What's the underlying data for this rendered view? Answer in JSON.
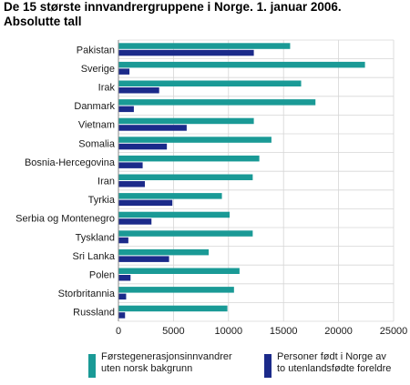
{
  "header": {
    "title_line1": "De 15 største innvandrergruppene i Norge. 1. januar 2006.",
    "title_line2": "Absolutte tall"
  },
  "chart_data": {
    "type": "bar",
    "orientation": "horizontal",
    "categories": [
      "Pakistan",
      "Sverige",
      "Irak",
      "Danmark",
      "Vietnam",
      "Somalia",
      "Bosnia-Hercegovina",
      "Iran",
      "Tyrkia",
      "Serbia og Montenegro",
      "Tyskland",
      "Sri Lanka",
      "Polen",
      "Storbritannia",
      "Russland"
    ],
    "series": [
      {
        "name": "Førstegenerasjonsinnvandrer uten norsk bakgrunn",
        "color": "#1a9a96",
        "values": [
          15600,
          22400,
          16600,
          17900,
          12300,
          13900,
          12800,
          12200,
          9400,
          10100,
          12200,
          8200,
          11000,
          10500,
          9900
        ]
      },
      {
        "name": "Personer født i Norge av to utenlandsfødte foreldre",
        "color": "#1b2a8a",
        "values": [
          12300,
          1000,
          3700,
          1400,
          6200,
          4400,
          2200,
          2400,
          4900,
          3000,
          900,
          4600,
          1100,
          700,
          600
        ]
      }
    ],
    "xlim": [
      0,
      25000
    ],
    "xticks": [
      "0",
      "5000",
      "10000",
      "15000",
      "20000",
      "25000"
    ],
    "grid": true,
    "legend_position": "bottom"
  },
  "legend": {
    "items": [
      {
        "line1": "Førstegenerasjonsinnvandrer",
        "line2": "uten norsk bakgrunn",
        "color": "#1a9a96"
      },
      {
        "line1": "Personer født i Norge av",
        "line2": "to utenlandsfødte foreldre",
        "color": "#1b2a8a"
      }
    ]
  }
}
